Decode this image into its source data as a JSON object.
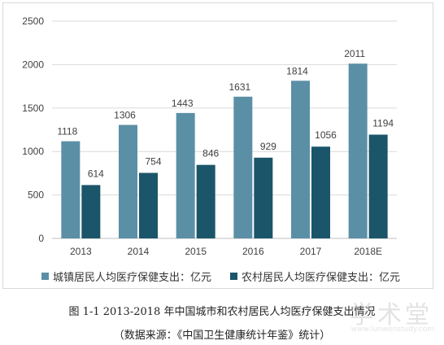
{
  "chart_data": {
    "type": "bar",
    "categories": [
      "2013",
      "2014",
      "2015",
      "2016",
      "2017",
      "2018E"
    ],
    "series": [
      {
        "name": "城镇居民人均医疗保健支出：亿元",
        "values": [
          1118,
          1306,
          1443,
          1631,
          1814,
          2011
        ],
        "color": "#5b8fa6"
      },
      {
        "name": "农村居民人均医疗保健支出：亿元",
        "values": [
          614,
          754,
          846,
          929,
          1056,
          1194
        ],
        "color": "#1b5569"
      }
    ],
    "ylim": [
      0,
      2500
    ],
    "yticks": [
      "0",
      "500",
      "1000",
      "1500",
      "2000",
      "2500"
    ],
    "grid": true,
    "legend": "bottom"
  },
  "caption": {
    "title": "图 1-1  2013-2018 年中国城市和农村居民人均医疗保健支出情况",
    "source": "（数据来源：《中国卫生健康统计年鉴》统计）"
  },
  "watermark": {
    "text": "学术堂",
    "url": "www.lunwenstudy.com"
  }
}
